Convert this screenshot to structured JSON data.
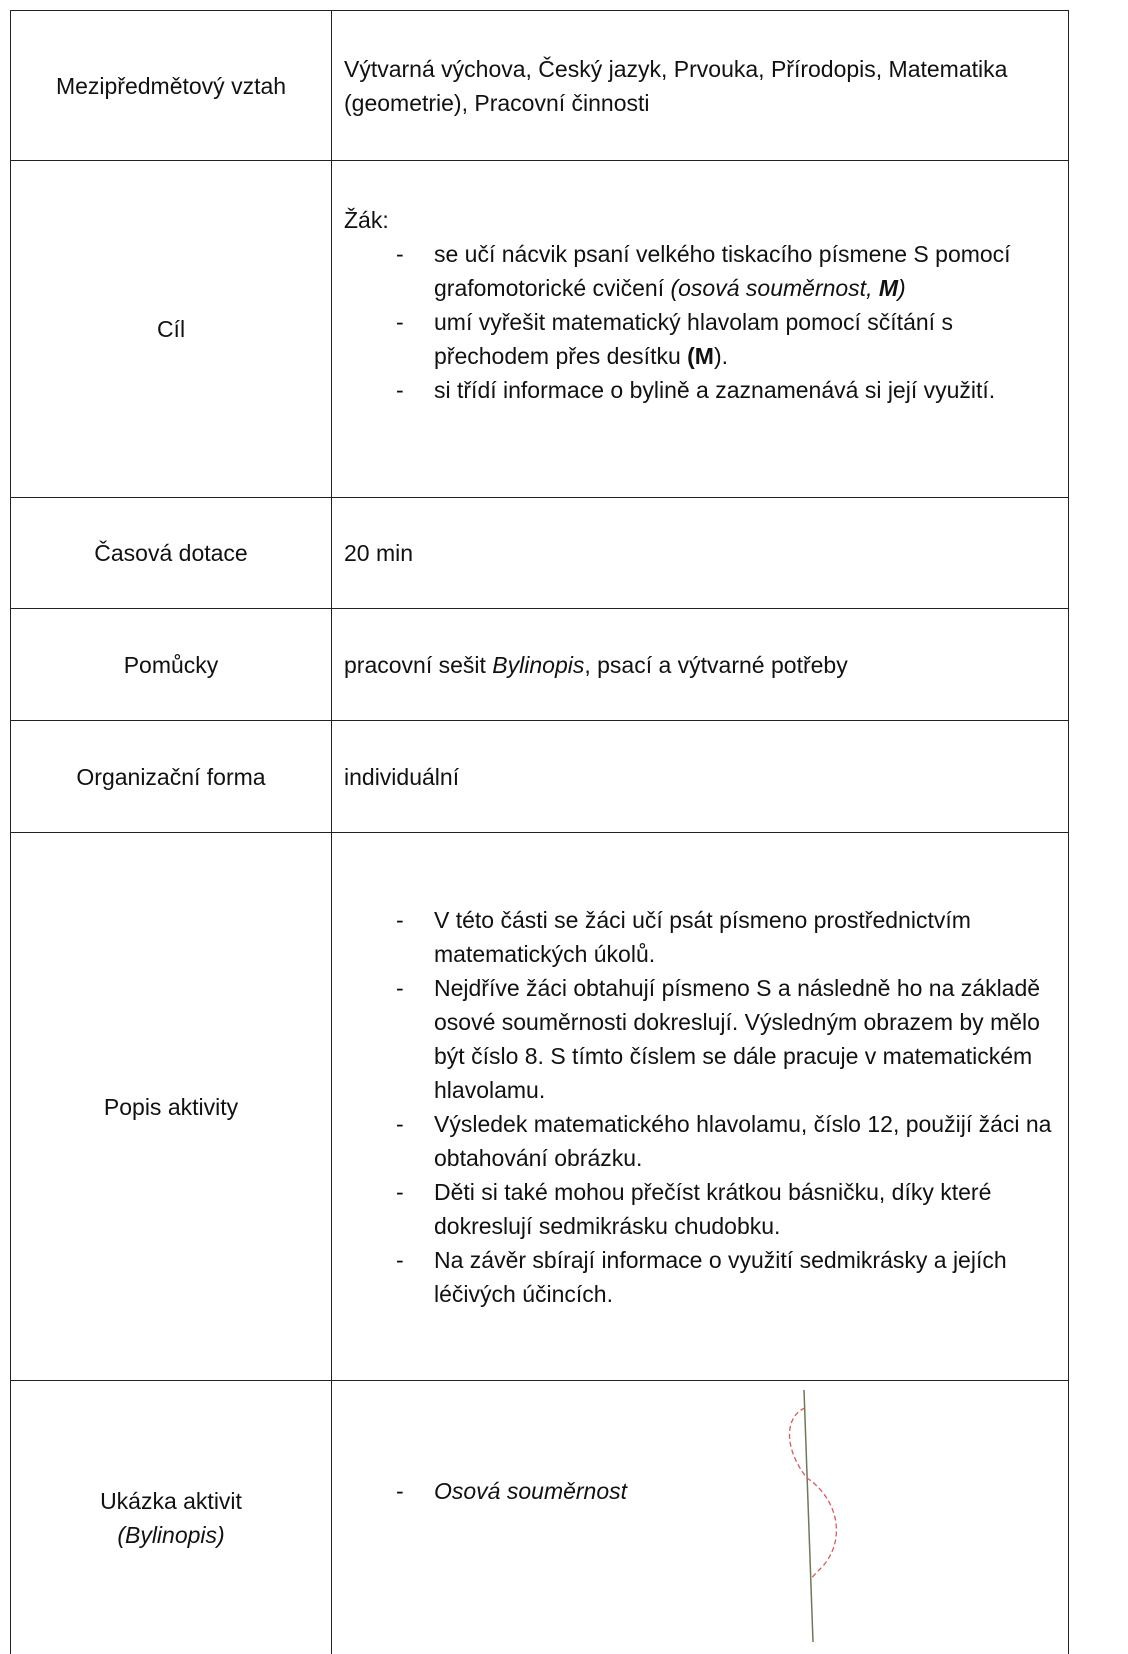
{
  "table": {
    "bullet": "-",
    "rows": [
      {
        "label": "Mezipředmětový vztah",
        "text": "Výtvarná výchova, Český jazyk, Prvouka, Přírodopis, Matematika (geometrie), Pracovní činnosti"
      },
      {
        "label": "Cíl",
        "intro": "Žák:",
        "items": [
          [
            "se učí nácvik psaní velkého tiskacího písmene S pomocí grafomotorické cvičení ",
            "(osová souměrnost, ",
            "M",
            ")"
          ],
          [
            "umí vyřešit matematický hlavolam pomocí sčítání s přechodem přes desítku ",
            "(M",
            ")."
          ],
          [
            "si třídí informace o bylině a zaznamenává si její využití."
          ]
        ]
      },
      {
        "label": "Časová dotace",
        "text": "20 min"
      },
      {
        "label": "Pomůcky",
        "text": [
          "pracovní sešit ",
          "Bylinopis",
          ", psací a výtvarné potřeby"
        ]
      },
      {
        "label": "Organizační forma",
        "text": "individuální"
      },
      {
        "label": "Popis aktivity",
        "items": [
          "V této části se žáci učí psát písmeno prostřednictvím matematických úkolů.",
          "Nejdříve žáci obtahují písmeno S a následně ho na základě osové souměrnosti dokreslují. Výsledným obrazem by mělo být číslo 8. S tímto číslem se dále pracuje v matematickém hlavolamu.",
          "Výsledek matematického hlavolamu, číslo 12, použijí žáci na obtahování obrázku.",
          "Děti si také mohou přečíst krátkou básničku, díky které dokreslují sedmikrásku chudobku.",
          "Na závěr sbírají informace o využití sedmikrásky a jejích léčivých účincích."
        ]
      },
      {
        "label": [
          "Ukázka aktivit",
          "(Bylinopis)"
        ],
        "items": [
          "Osová souměrnost"
        ]
      }
    ]
  }
}
